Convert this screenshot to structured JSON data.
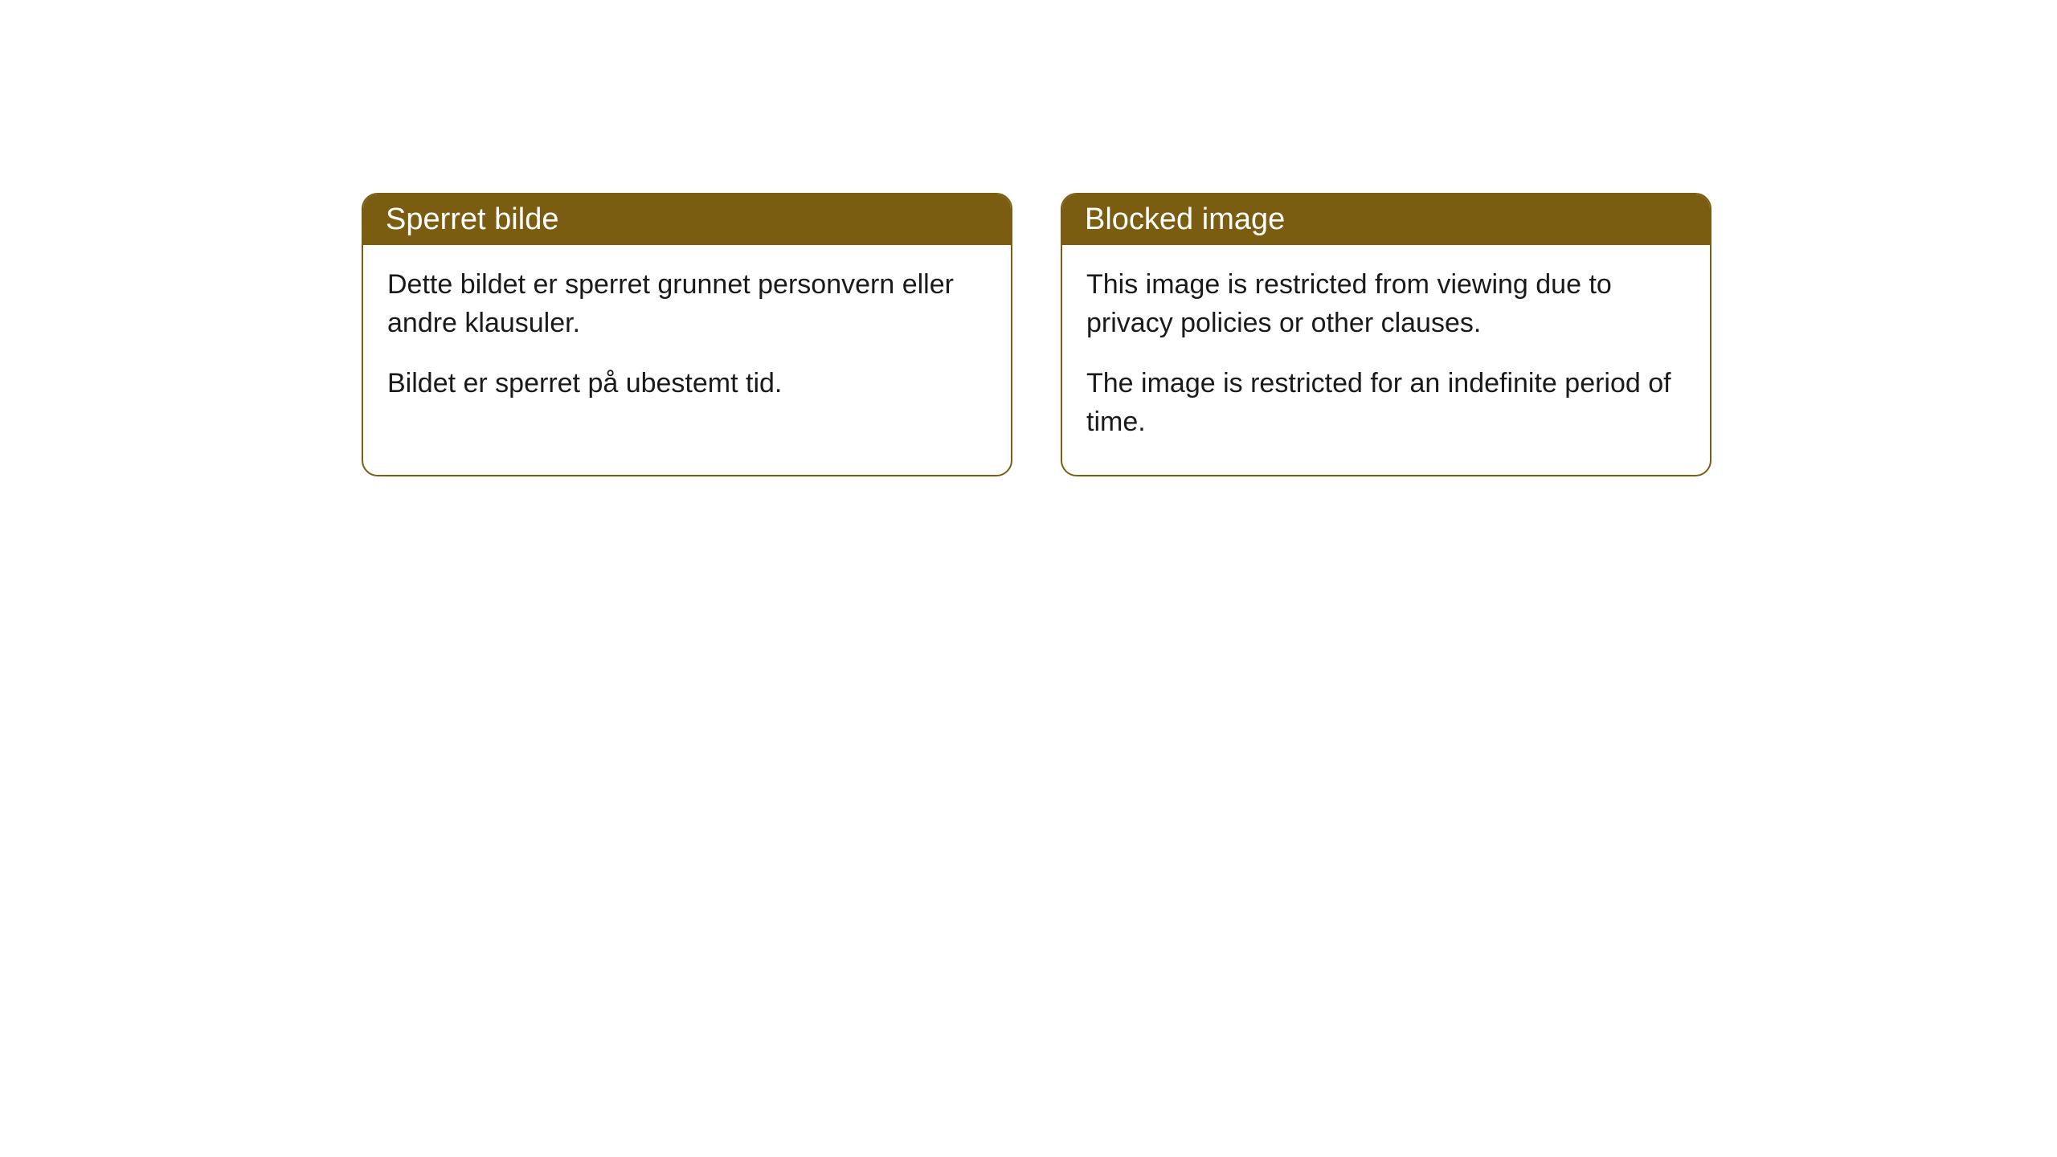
{
  "cards": [
    {
      "title": "Sperret bilde",
      "paragraph1": "Dette bildet er sperret grunnet personvern eller andre klausuler.",
      "paragraph2": "Bildet er sperret på ubestemt tid."
    },
    {
      "title": "Blocked image",
      "paragraph1": "This image is restricted from viewing due to privacy policies or other clauses.",
      "paragraph2": "The image is restricted for an indefinite period of time."
    }
  ],
  "styling": {
    "header_bg_color": "#7a5d11",
    "header_text_color": "#ffffff",
    "border_color": "#7a5d11",
    "body_bg_color": "#ffffff",
    "body_text_color": "#1a1a1a",
    "border_radius": 20,
    "header_fontsize": 38,
    "body_fontsize": 34
  }
}
